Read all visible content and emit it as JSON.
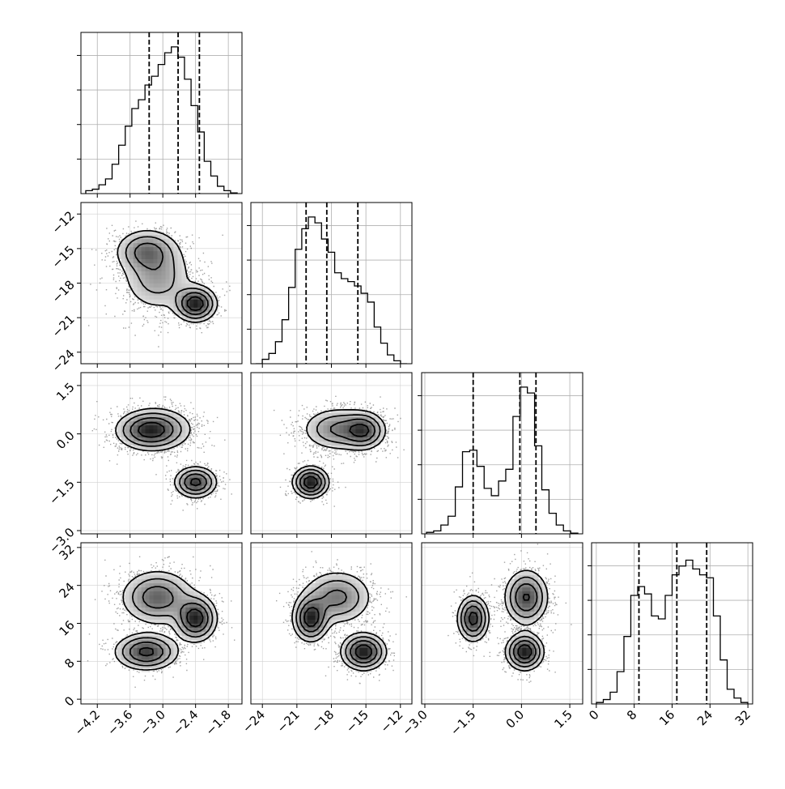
{
  "chart_data": {
    "type": "corner",
    "parameters": [
      {
        "ticks": [
          -4.2,
          -3.6,
          -3.0,
          -2.4,
          -1.8
        ],
        "tick_labels": [
          "−4.2",
          "−3.6",
          "−3.0",
          "−2.4",
          "−1.8"
        ],
        "range": [
          -4.5,
          -1.55
        ],
        "quantiles": [
          -3.25,
          -2.72,
          -2.33
        ],
        "hist": [
          0.02,
          0.03,
          0.06,
          0.1,
          0.2,
          0.33,
          0.46,
          0.58,
          0.64,
          0.74,
          0.8,
          0.88,
          0.96,
          1.0,
          0.93,
          0.78,
          0.6,
          0.42,
          0.22,
          0.12,
          0.05,
          0.02,
          0.005
        ]
      },
      {
        "ticks": [
          -24,
          -21,
          -18,
          -15,
          -12
        ],
        "tick_labels": [
          "−24",
          "−21",
          "−18",
          "−15",
          "−12"
        ],
        "range": [
          -25,
          -11
        ],
        "quantiles": [
          -20.2,
          -18.4,
          -15.7
        ],
        "hist": [
          0.0,
          0.03,
          0.07,
          0.15,
          0.3,
          0.52,
          0.78,
          0.92,
          1.0,
          0.96,
          0.85,
          0.76,
          0.62,
          0.58,
          0.56,
          0.53,
          0.48,
          0.42,
          0.25,
          0.14,
          0.06,
          0.02,
          0.0
        ]
      },
      {
        "ticks": [
          -3.0,
          -1.5,
          0.0,
          1.5
        ],
        "tick_labels": [
          "−3.0",
          "−1.5",
          "0.0",
          "1.5"
        ],
        "range": [
          -3.1,
          1.9
        ],
        "quantiles": [
          -1.5,
          -0.05,
          0.45
        ],
        "hist": [
          0.01,
          0.02,
          0.06,
          0.12,
          0.32,
          0.56,
          0.57,
          0.46,
          0.31,
          0.26,
          0.36,
          0.44,
          0.8,
          1.0,
          0.96,
          0.6,
          0.3,
          0.14,
          0.06,
          0.02,
          0.005
        ]
      },
      {
        "ticks": [
          0,
          8,
          16,
          24,
          32
        ],
        "tick_labels": [
          "0",
          "8",
          "16",
          "24",
          "32"
        ],
        "range": [
          -1,
          33
        ],
        "quantiles": [
          9.0,
          17.0,
          23.3
        ],
        "hist": [
          0.01,
          0.03,
          0.08,
          0.22,
          0.46,
          0.74,
          0.8,
          0.75,
          0.6,
          0.58,
          0.74,
          0.88,
          0.94,
          0.98,
          0.92,
          0.88,
          0.86,
          0.6,
          0.3,
          0.1,
          0.04,
          0.01
        ]
      }
    ],
    "components": [
      {
        "mean": [
          -3.1,
          -17.5,
          0.15,
          21.5
        ],
        "std": [
          0.35,
          1.6,
          0.35,
          3.0
        ],
        "weight": 0.42
      },
      {
        "mean": [
          -2.4,
          -19.8,
          -1.5,
          17.0
        ],
        "std": [
          0.2,
          0.8,
          0.25,
          2.5
        ],
        "weight": 0.28
      },
      {
        "mean": [
          -3.3,
          -15.2,
          0.1,
          10.0
        ],
        "std": [
          0.3,
          1.0,
          0.3,
          2.0
        ],
        "weight": 0.3
      }
    ],
    "quantile_style": "dashed",
    "grid": true
  }
}
